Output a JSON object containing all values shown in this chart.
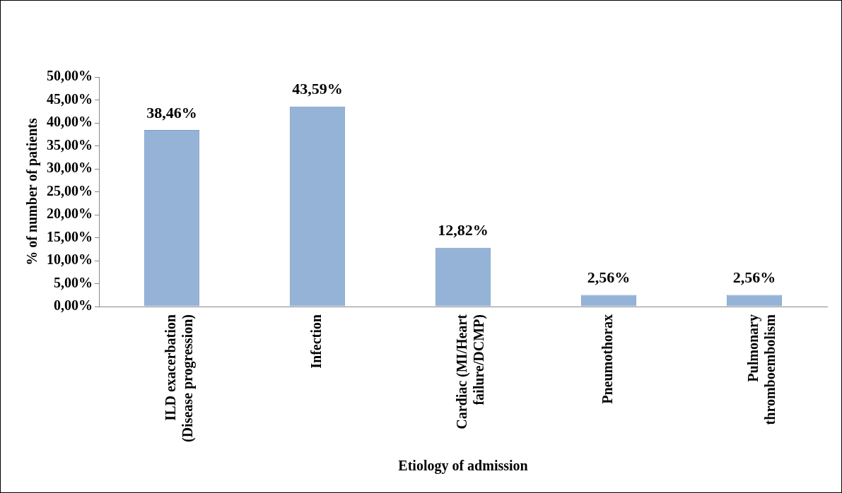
{
  "chart_data": {
    "type": "bar",
    "xlabel": "Etiology of admission",
    "ylabel": "% of number of patients",
    "categories": [
      "ILD exacerbation (Disease progression)",
      "Infection",
      "Cardiac (MI/Heart failure/DCMP)",
      "Pneumothorax",
      "Pulmonary thromboembolism"
    ],
    "values": [
      38.46,
      43.59,
      12.82,
      2.56,
      2.56
    ],
    "value_labels": [
      "38,46%",
      "43,59%",
      "12,82%",
      "2,56%",
      "2,56%"
    ],
    "color": "#95b3d7",
    "ylim": [
      0,
      50
    ],
    "yticks": [
      {
        "value": 0,
        "label": "0,00%"
      },
      {
        "value": 5,
        "label": "5,00%"
      },
      {
        "value": 10,
        "label": "10,00%"
      },
      {
        "value": 15,
        "label": "15,00%"
      },
      {
        "value": 20,
        "label": "20,00%"
      },
      {
        "value": 25,
        "label": "25,00%"
      },
      {
        "value": 30,
        "label": "30,00%"
      },
      {
        "value": 35,
        "label": "35,00%"
      },
      {
        "value": 40,
        "label": "40,00%"
      },
      {
        "value": 45,
        "label": "45,00%"
      },
      {
        "value": 50,
        "label": "50,00%"
      }
    ],
    "grid": false,
    "legend": false
  }
}
